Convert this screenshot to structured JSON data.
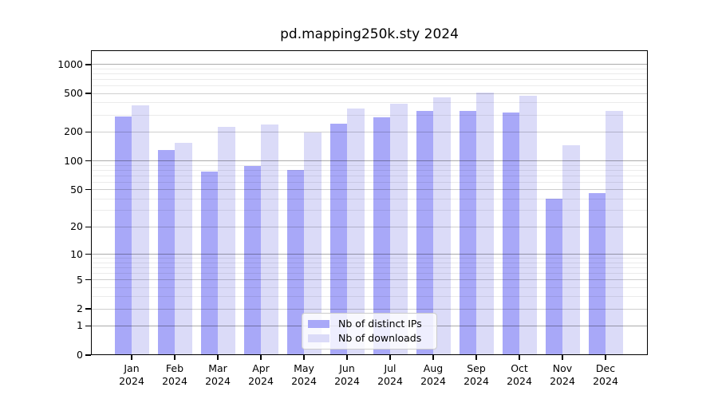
{
  "title": "pd.mapping250k.sty 2024",
  "chart_data": {
    "type": "bar",
    "title": "pd.mapping250k.sty 2024",
    "categories": [
      "Jan 2024",
      "Feb 2024",
      "Mar 2024",
      "Apr 2024",
      "May 2024",
      "Jun 2024",
      "Jul 2024",
      "Aug 2024",
      "Sep 2024",
      "Oct 2024",
      "Nov 2024",
      "Dec 2024"
    ],
    "series": [
      {
        "name": "Nb of distinct IPs",
        "color": "#a8a8f8",
        "values": [
          287,
          129,
          77,
          88,
          81,
          245,
          285,
          331,
          329,
          316,
          40,
          46
        ]
      },
      {
        "name": "Nb of downloads",
        "color": "#dbdbf8",
        "values": [
          377,
          153,
          225,
          240,
          197,
          351,
          392,
          456,
          510,
          471,
          146,
          328
        ]
      }
    ],
    "yscale": "log1p",
    "yticks": [
      0,
      1,
      2,
      5,
      10,
      20,
      50,
      100,
      200,
      500,
      1000
    ],
    "minor_yticks": [
      3,
      4,
      6,
      7,
      8,
      9,
      30,
      40,
      60,
      70,
      80,
      90,
      300,
      400,
      600,
      700,
      800,
      900
    ],
    "ylim": [
      0,
      1400
    ],
    "xlabel": "",
    "ylabel": "",
    "grid": "both",
    "legend_position": "lower center"
  },
  "colors": {
    "background": "#ffffff",
    "bar_ips": "#a8a8f8",
    "bar_downloads": "#dbdbf8",
    "grid_major": "rgba(0,0,0,0.33)",
    "grid_mid": "rgba(0,0,0,0.19)",
    "grid_minor": "rgba(0,0,0,0.08)",
    "spine": "#000000",
    "legend_border": "#cccccc"
  }
}
